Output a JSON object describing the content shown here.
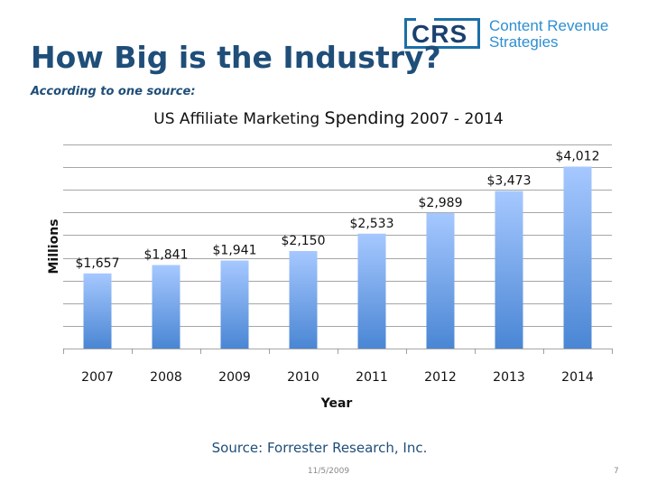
{
  "slide": {
    "title": "How Big is the Industry?",
    "subtitle": "According to one source:",
    "source": "Source: Forrester Research, Inc.",
    "date": "11/5/2009",
    "page_number": "7"
  },
  "logo": {
    "letters": "CRS",
    "line1": "Content Revenue",
    "line2": "Strategies"
  },
  "chart_data": {
    "type": "bar",
    "title_part1": "US Affiliate Marketing ",
    "title_part2": "Spending",
    "title_part3": " 2007 - 2014",
    "xlabel": "Year",
    "ylabel": "Millions",
    "categories": [
      "2007",
      "2008",
      "2009",
      "2010",
      "2011",
      "2012",
      "2013",
      "2014"
    ],
    "values": [
      1657,
      1841,
      1941,
      2150,
      2533,
      2989,
      3473,
      4012
    ],
    "data_labels": [
      "$1,657",
      "$1,841",
      "$1,941",
      "$2,150",
      "$2,533",
      "$2,989",
      "$3,473",
      "$4,012"
    ],
    "ylim": [
      0,
      4500
    ],
    "gridline_step": 500,
    "grid": true,
    "colors": {
      "bar_top": "#a6c8ff",
      "bar_bottom": "#4a86d4",
      "grid": "#888888",
      "text": "#111111"
    }
  }
}
